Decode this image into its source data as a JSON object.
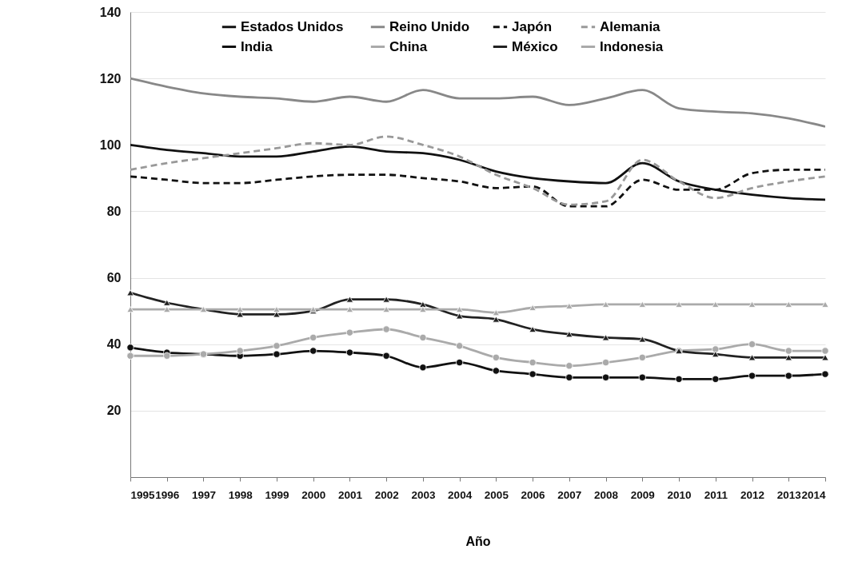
{
  "chart_data": {
    "type": "line",
    "xlabel": "Año",
    "x": [
      1995,
      1996,
      1997,
      1998,
      1999,
      2000,
      2001,
      2002,
      2003,
      2004,
      2005,
      2006,
      2007,
      2008,
      2009,
      2010,
      2011,
      2012,
      2013,
      2014
    ],
    "xlim": [
      1995,
      2014
    ],
    "xticks": [
      1995,
      1996,
      1997,
      1998,
      1999,
      2000,
      2001,
      2002,
      2003,
      2004,
      2005,
      2006,
      2007,
      2008,
      2009,
      2010,
      2011,
      2012,
      2013,
      2014
    ],
    "ylim": [
      0,
      140
    ],
    "yticks": [
      20,
      40,
      60,
      80,
      100,
      120,
      140
    ],
    "grid": "y",
    "legend": "top",
    "series": [
      {
        "name": "Estados  Unidos",
        "color": "#111111",
        "line_style": "solid",
        "marker": "none",
        "values": [
          100,
          98.5,
          97.5,
          96.5,
          96.5,
          98,
          99.5,
          98,
          97.5,
          95.5,
          92,
          90,
          89,
          88.5,
          94.5,
          89,
          86.5,
          85,
          84,
          83.5
        ]
      },
      {
        "name": "Reino Unido",
        "color": "#888888",
        "line_style": "solid",
        "marker": "none",
        "values": [
          120,
          117.5,
          115.5,
          114.5,
          114,
          113,
          114.5,
          113,
          116.5,
          114,
          114,
          114.5,
          112,
          114,
          116.5,
          111,
          110,
          109.5,
          108,
          105.5
        ]
      },
      {
        "name": "Japón",
        "color": "#111111",
        "line_style": "dashed",
        "marker": "none",
        "values": [
          90.5,
          89.5,
          88.5,
          88.5,
          89.5,
          90.5,
          91,
          91,
          90,
          89,
          87,
          87.5,
          81.5,
          81.5,
          89.5,
          86.5,
          86.5,
          91.5,
          92.5,
          92.5
        ]
      },
      {
        "name": "Alemania",
        "color": "#999999",
        "line_style": "dashed",
        "marker": "none",
        "values": [
          92.5,
          94.5,
          96,
          97.5,
          99,
          100.5,
          100,
          102.5,
          100,
          96.5,
          91,
          87,
          82,
          83,
          95.5,
          89,
          84,
          87,
          89,
          90.5
        ]
      },
      {
        "name": "India",
        "color": "#111111",
        "line_style": "solid",
        "marker": "circle",
        "values": [
          39,
          37.5,
          37,
          36.5,
          37,
          38,
          37.5,
          36.5,
          33,
          34.5,
          32,
          31,
          30,
          30,
          30,
          29.5,
          29.5,
          30.5,
          30.5,
          31
        ]
      },
      {
        "name": "China",
        "color": "#aaaaaa",
        "line_style": "solid",
        "marker": "circle",
        "values": [
          36.5,
          36.5,
          37,
          38,
          39.5,
          42,
          43.5,
          44.5,
          42,
          39.5,
          36,
          34.5,
          33.5,
          34.5,
          36,
          38,
          38.5,
          40,
          38,
          38
        ]
      },
      {
        "name": "México",
        "color": "#222222",
        "line_style": "solid",
        "marker": "triangle",
        "values": [
          55.5,
          52.5,
          50.5,
          49,
          49,
          50,
          53.5,
          53.5,
          52,
          48.5,
          47.5,
          44.5,
          43,
          42,
          41.5,
          38,
          37,
          36,
          36,
          36
        ]
      },
      {
        "name": "Indonesia",
        "color": "#aaaaaa",
        "line_style": "solid",
        "marker": "triangle",
        "values": [
          50.5,
          50.5,
          50.5,
          50.5,
          50.5,
          50.5,
          50.5,
          50.5,
          50.5,
          50.5,
          49.5,
          51,
          51.5,
          52,
          52,
          52,
          52,
          52,
          52,
          52
        ]
      }
    ]
  }
}
